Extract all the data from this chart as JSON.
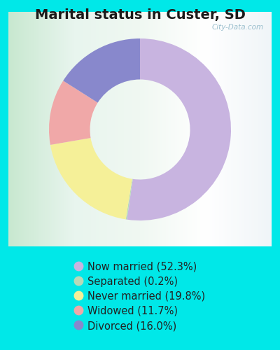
{
  "title": "Marital status in Custer, SD",
  "slices": [
    {
      "label": "Now married (52.3%)",
      "value": 52.3,
      "color": "#c8b4e0"
    },
    {
      "label": "Separated (0.2%)",
      "value": 0.2,
      "color": "#b8d9b8"
    },
    {
      "label": "Never married (19.8%)",
      "value": 19.8,
      "color": "#f5f098"
    },
    {
      "label": "Widowed (11.7%)",
      "value": 11.7,
      "color": "#f0a8a8"
    },
    {
      "label": "Divorced (16.0%)",
      "value": 16.0,
      "color": "#8888cc"
    }
  ],
  "bg_outer": "#00e8e8",
  "watermark": "City-Data.com",
  "title_fontsize": 14,
  "legend_fontsize": 10.5,
  "donut_width": 0.45
}
